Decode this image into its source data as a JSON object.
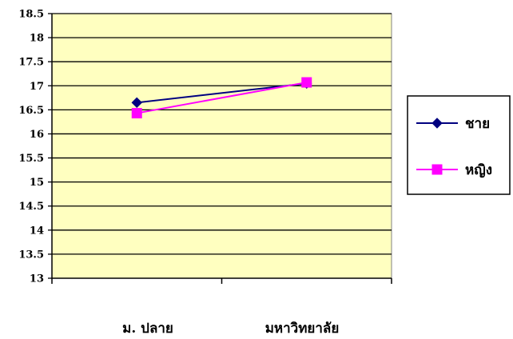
{
  "chart_data": {
    "type": "line",
    "categories": [
      "ม. ปลาย",
      "มหาวิทยาลัย"
    ],
    "series": [
      {
        "name": "ชาย",
        "values": [
          16.65,
          17.05
        ],
        "color": "#000080",
        "marker": "diamond"
      },
      {
        "name": "หญิง",
        "values": [
          16.43,
          17.07
        ],
        "color": "#FF00FF",
        "marker": "square"
      }
    ],
    "ylim": [
      13,
      18.5
    ],
    "ytick_step": 0.5,
    "yticks": [
      "13",
      "13.5",
      "14",
      "14.5",
      "15",
      "15.5",
      "16",
      "16.5",
      "17",
      "17.5",
      "18",
      "18.5"
    ],
    "grid": true,
    "legend_position": "right",
    "plot_background": "#FFFFC0",
    "title": "",
    "xlabel": "",
    "ylabel": ""
  }
}
